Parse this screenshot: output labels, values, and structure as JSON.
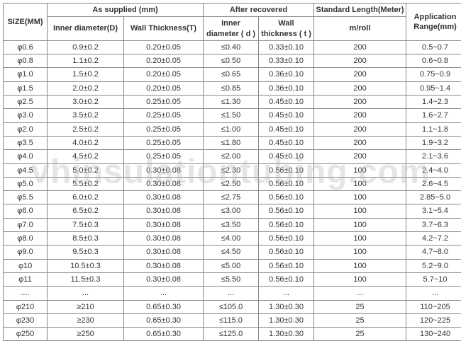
{
  "watermark": "vhinsulationtubing.com",
  "table": {
    "border_color": "#888888",
    "text_color": "#333333",
    "background_color": "#ffffff",
    "header_fontsize": 11,
    "cell_fontsize": 11,
    "headers": {
      "size": "SIZE(MM)",
      "as_supplied": "As supplied (mm)",
      "after_recovered": "After recovered",
      "standard_length": "Standard Length(Meter)",
      "application_range": "Application Range(mm)",
      "inner_diameter_D": "Inner diameter(D)",
      "wall_thickness_T": "Wall Thickness(T)",
      "inner_diameter_d": "Inner diameter ( d )",
      "wall_thickness_t": "Wall thickness ( t )",
      "m_roll": "m/roll"
    },
    "column_widths": {
      "size": 62,
      "inner_D": 108,
      "wall_T": 112,
      "inner_d": 78,
      "wall_t": 78,
      "std_len": 130,
      "app_range": 82
    },
    "rows": [
      {
        "size": "φ0.6",
        "inner_D": "0.9±0.2",
        "wall_T": "0.20±0.05",
        "inner_d": "≤0.40",
        "wall_t": "0.33±0.10",
        "std": "200",
        "app": "0.5~0.7"
      },
      {
        "size": "φ0.8",
        "inner_D": "1.1±0.2",
        "wall_T": "0.20±0.05",
        "inner_d": "≤0.50",
        "wall_t": "0.33±0.10",
        "std": "200",
        "app": "0.6~0.8"
      },
      {
        "size": "φ1.0",
        "inner_D": "1.5±0.2",
        "wall_T": "0.20±0.05",
        "inner_d": "≤0.65",
        "wall_t": "0.36±0.10",
        "std": "200",
        "app": "0.75~0.9"
      },
      {
        "size": "φ1.5",
        "inner_D": "2.0±0.2",
        "wall_T": "0.20±0.05",
        "inner_d": "≤0.85",
        "wall_t": "0.36±0.10",
        "std": "200",
        "app": "0.95~1.4"
      },
      {
        "size": "φ2.5",
        "inner_D": "3.0±0.2",
        "wall_T": "0.25±0.05",
        "inner_d": "≤1.30",
        "wall_t": "0.45±0.10",
        "std": "200",
        "app": "1.4~2.3"
      },
      {
        "size": "φ3.0",
        "inner_D": "3.5±0.2",
        "wall_T": "0.25±0.05",
        "inner_d": "≤1.50",
        "wall_t": "0.45±0.10",
        "std": "200",
        "app": "1.6~2.7"
      },
      {
        "size": "φ2.0",
        "inner_D": "2.5±0.2",
        "wall_T": "0.25±0.05",
        "inner_d": "≤1.00",
        "wall_t": "0.45±0.10",
        "std": "200",
        "app": "1.1~1.8"
      },
      {
        "size": "φ3.5",
        "inner_D": "4.0±0.2",
        "wall_T": "0.25±0.05",
        "inner_d": "≤1.80",
        "wall_t": "0.45±0.10",
        "std": "200",
        "app": "1.9~3.2"
      },
      {
        "size": "φ4.0",
        "inner_D": "4.5±0.2",
        "wall_T": "0.25±0.05",
        "inner_d": "≤2.00",
        "wall_t": "0.45±0.10",
        "std": "200",
        "app": "2.1~3.6"
      },
      {
        "size": "φ4.5",
        "inner_D": "5.0±0.2",
        "wall_T": "0.30±0.08",
        "inner_d": "≤2.30",
        "wall_t": "0.56±0.10",
        "std": "100",
        "app": "2.4~4.0"
      },
      {
        "size": "φ5.0",
        "inner_D": "5.5±0.2",
        "wall_T": "0.30±0.08",
        "inner_d": "≤2.50",
        "wall_t": "0.56±0.10",
        "std": "100",
        "app": "2.6~4.5"
      },
      {
        "size": "φ5.5",
        "inner_D": "6.0±0.2",
        "wall_T": "0.30±0.08",
        "inner_d": "≤2.75",
        "wall_t": "0.56±0.10",
        "std": "100",
        "app": "2.85~5.0"
      },
      {
        "size": "φ6.0",
        "inner_D": "6.5±0.2",
        "wall_T": "0.30±0.08",
        "inner_d": "≤3.00",
        "wall_t": "0.56±0.10",
        "std": "100",
        "app": "3.1~5.4"
      },
      {
        "size": "φ7.0",
        "inner_D": "7.5±0.3",
        "wall_T": "0.30±0.08",
        "inner_d": "≤3.50",
        "wall_t": "0.56±0.10",
        "std": "100",
        "app": "3.7~6.3"
      },
      {
        "size": "φ8.0",
        "inner_D": "8.5±0.3",
        "wall_T": "0.30±0.08",
        "inner_d": "≤4.00",
        "wall_t": "0.56±0.10",
        "std": "100",
        "app": "4.2~7.2"
      },
      {
        "size": "φ9.0",
        "inner_D": "9.5±0.3",
        "wall_T": "0.30±0.08",
        "inner_d": "≤4.50",
        "wall_t": "0.56±0.10",
        "std": "100",
        "app": "4.7~8.0"
      },
      {
        "size": "φ10",
        "inner_D": "10.5±0.3",
        "wall_T": "0.30±0.08",
        "inner_d": "≤5.00",
        "wall_t": "0.56±0.10",
        "std": "100",
        "app": "5.2~9.0"
      },
      {
        "size": "φ11",
        "inner_D": "11.5±0.3",
        "wall_T": "0.30±0.08",
        "inner_d": "≤5.50",
        "wall_t": "0.56±0.10",
        "std": "100",
        "app": "5.7~10"
      },
      {
        "size": "....",
        "inner_D": "...",
        "wall_T": "...",
        "inner_d": "...",
        "wall_t": "...",
        "std": "...",
        "app": "..."
      },
      {
        "size": "φ210",
        "inner_D": "≥210",
        "wall_T": "0.65±0.30",
        "inner_d": "≤105.0",
        "wall_t": "1.30±0.30",
        "std": "25",
        "app": "110~205"
      },
      {
        "size": "φ230",
        "inner_D": "≥230",
        "wall_T": "0.65±0.30",
        "inner_d": "≤115.0",
        "wall_t": "1.30±0.30",
        "std": "25",
        "app": "120~225"
      },
      {
        "size": "φ250",
        "inner_D": "≥250",
        "wall_T": "0.65±0.30",
        "inner_d": "≤125.0",
        "wall_t": "1.30±0.30",
        "std": "25",
        "app": "130~240"
      }
    ]
  }
}
